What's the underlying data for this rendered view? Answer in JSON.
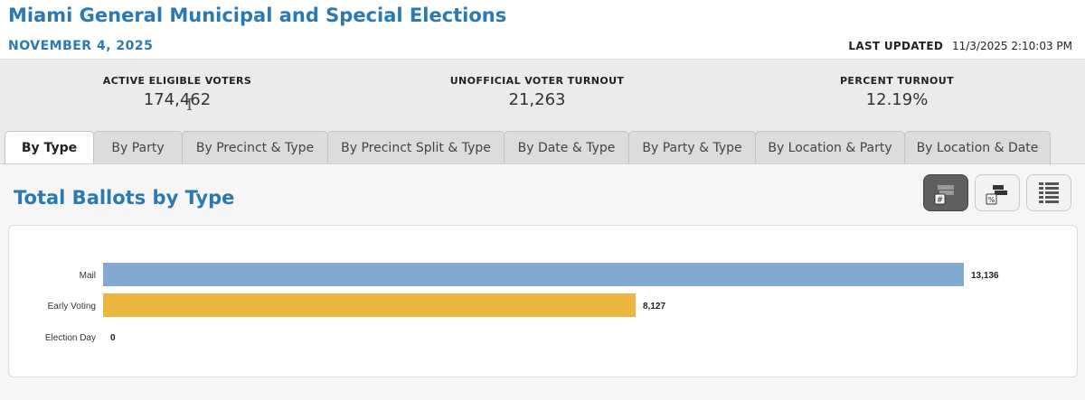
{
  "header": {
    "title": "Miami General Municipal and Special Elections",
    "date": "NOVEMBER 4, 2025",
    "last_updated_label": "LAST UPDATED",
    "last_updated_value": "11/3/2025 2:10:03 PM"
  },
  "stats": [
    {
      "label": "ACTIVE ELIGIBLE VOTERS",
      "value": "174,462"
    },
    {
      "label": "UNOFFICIAL VOTER TURNOUT",
      "value": "21,263"
    },
    {
      "label": "PERCENT TURNOUT",
      "value": "12.19%"
    }
  ],
  "cursor_icon": "text-cursor-icon",
  "tabs": [
    {
      "label": "By Type",
      "active": true
    },
    {
      "label": "By Party",
      "active": false
    },
    {
      "label": "By Precinct & Type",
      "active": false
    },
    {
      "label": "By Precinct Split & Type",
      "active": false
    },
    {
      "label": "By Date & Type",
      "active": false
    },
    {
      "label": "By Party & Type",
      "active": false
    },
    {
      "label": "By Location & Party",
      "active": false
    },
    {
      "label": "By Location & Date",
      "active": false
    }
  ],
  "section": {
    "title": "Total Ballots by Type"
  },
  "view_buttons": [
    {
      "name": "count-chart-icon",
      "glyph": "#",
      "active": true
    },
    {
      "name": "percent-chart-icon",
      "glyph": "%",
      "active": false
    },
    {
      "name": "table-view-icon",
      "glyph": "",
      "active": false
    }
  ],
  "colors": {
    "accent": "#2b79b4",
    "bar_mail": "#82a9d4",
    "bar_early": "#edb63f"
  },
  "chart_data": {
    "type": "bar",
    "orientation": "horizontal",
    "categories": [
      "Mail",
      "Early Voting",
      "Election Day"
    ],
    "values": [
      13136,
      8127,
      0
    ],
    "value_labels": [
      "13,136",
      "8,127",
      "0"
    ],
    "colors": [
      "#82a9d4",
      "#edb63f",
      "#82a9d4"
    ],
    "title": "",
    "xlabel": "",
    "ylabel": "",
    "xlim": [
      0,
      13136
    ],
    "grid": false,
    "legend": "none"
  }
}
